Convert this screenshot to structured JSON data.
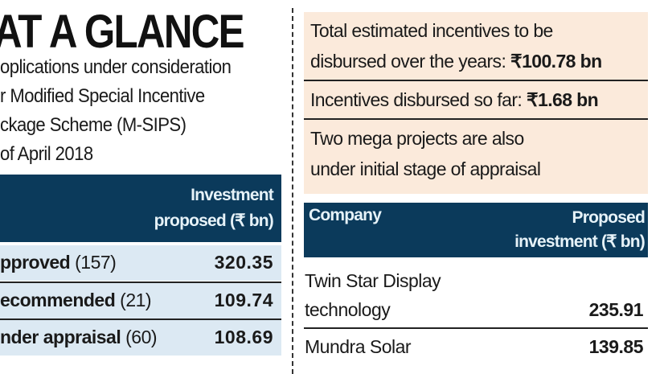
{
  "title": "AT A GLANCE",
  "intro_lines": [
    "oplications under consideration",
    "r Modified Special Incentive",
    "ckage Scheme (M-SIPS)",
    " of April 2018"
  ],
  "left_table": {
    "header": [
      "Investment",
      "proposed (₹ bn)"
    ],
    "rows": [
      {
        "label": "pproved",
        "count": "(157)",
        "value": "320.35"
      },
      {
        "label": "ecommended",
        "count": "(21)",
        "value": "109.74"
      },
      {
        "label": "nder appraisal",
        "count": "(60)",
        "value": "108.69"
      }
    ]
  },
  "summary": {
    "total_line1": "Total estimated incentives to be",
    "total_line2": "disbursed over the years:",
    "total_value": "₹100.78 bn",
    "disbursed_label": "Incentives disbursed so far:",
    "disbursed_value": "₹1.68 bn",
    "mega_line1": "Two mega projects are also",
    "mega_line2": "under initial stage of appraisal"
  },
  "right_table": {
    "header_company": "Company",
    "header_investment": [
      "Proposed",
      "investment (₹ bn)"
    ],
    "rows": [
      {
        "company": [
          "Twin Star Display",
          "technology"
        ],
        "value": "235.91"
      },
      {
        "company": [
          "Mundra Solar"
        ],
        "value": "139.85"
      }
    ]
  },
  "colors": {
    "navy": "#0b3a5b",
    "light_blue": "#dce9f3",
    "beige": "#fbeadb"
  }
}
